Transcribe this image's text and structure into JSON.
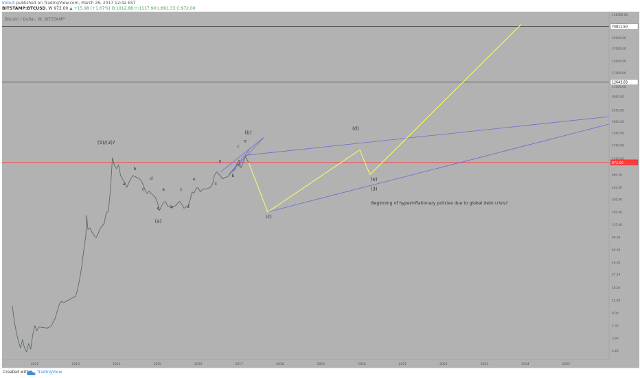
{
  "header": {
    "author": "Imbull",
    "published_text": "published on TradingView.com, March 26, 2017 12:42 EST",
    "symbol": "BITSTAMP:BTCUSD",
    "interval": "W",
    "last": "972.00",
    "change": "▲ +15.98 (+1.67%)",
    "ohlc": "O:1012.88 H:1117.90 L:891.33 C:972.00"
  },
  "footer": {
    "created_with": "Created with",
    "brand": "TradingView"
  },
  "colors": {
    "background": "#b2b2b2",
    "price_line": "#5a6a66",
    "projection": "#ffff66",
    "trendline": "#6a6ad8",
    "current_price": "#ff3b3b",
    "level_line": "#4a4a4a"
  },
  "chart_data": {
    "type": "line",
    "title": "Bitcoin / Dollar, W, BITSTAMP",
    "yscale": "log",
    "ylim": [
      1.8,
      120000
    ],
    "xlim": [
      2011.2,
      2026.05
    ],
    "x_tick_labels": [
      "2012",
      "2013",
      "2014",
      "2015",
      "2016",
      "2017",
      "2018",
      "2019",
      "2020",
      "2021",
      "2022",
      "2023",
      "2024",
      "2025"
    ],
    "y_tick_labels": [
      "110000.00",
      "80000.00",
      "52000.00",
      "37000.00",
      "25000.00",
      "17000.00",
      "11000.00",
      "8000.00",
      "5200.00",
      "3600.00",
      "2500.00",
      "1700.00",
      "1100.00",
      "660.00",
      "440.00",
      "300.00",
      "200.00",
      "135.00",
      "90.00",
      "60.00",
      "40.00",
      "27.50",
      "18.00",
      "12.00",
      "8.00",
      "5.30",
      "3.60",
      "2.40"
    ],
    "series": [
      {
        "points": [
          [
            2011.45,
            10
          ],
          [
            2011.5,
            6
          ],
          [
            2011.55,
            4.3
          ],
          [
            2011.6,
            3.2
          ],
          [
            2011.65,
            2.6
          ],
          [
            2011.7,
            3.4
          ],
          [
            2011.75,
            2.6
          ],
          [
            2011.8,
            2.3
          ],
          [
            2011.85,
            3
          ],
          [
            2011.9,
            2.5
          ],
          [
            2011.95,
            3.9
          ],
          [
            2012.0,
            5.3
          ],
          [
            2012.05,
            4.5
          ],
          [
            2012.1,
            5.1
          ],
          [
            2012.2,
            5
          ],
          [
            2012.3,
            4.9
          ],
          [
            2012.4,
            5.2
          ],
          [
            2012.5,
            6.7
          ],
          [
            2012.6,
            10.5
          ],
          [
            2012.65,
            11.5
          ],
          [
            2012.7,
            11
          ],
          [
            2012.8,
            11.8
          ],
          [
            2012.9,
            12.7
          ],
          [
            2013.0,
            13.5
          ],
          [
            2013.05,
            17
          ],
          [
            2013.1,
            24
          ],
          [
            2013.15,
            35
          ],
          [
            2013.2,
            60
          ],
          [
            2013.25,
            95
          ],
          [
            2013.27,
            180
          ],
          [
            2013.3,
            115
          ],
          [
            2013.35,
            120
          ],
          [
            2013.4,
            105
          ],
          [
            2013.45,
            95
          ],
          [
            2013.5,
            88
          ],
          [
            2013.55,
            100
          ],
          [
            2013.6,
            118
          ],
          [
            2013.65,
            128
          ],
          [
            2013.7,
            140
          ],
          [
            2013.75,
            195
          ],
          [
            2013.8,
            205
          ],
          [
            2013.85,
            400
          ],
          [
            2013.9,
            1130
          ],
          [
            2013.95,
            880
          ],
          [
            2014.0,
            800
          ],
          [
            2014.05,
            900
          ],
          [
            2014.1,
            640
          ],
          [
            2014.15,
            570
          ],
          [
            2014.2,
            520
          ],
          [
            2014.25,
            440
          ],
          [
            2014.3,
            500
          ],
          [
            2014.35,
            580
          ],
          [
            2014.4,
            640
          ],
          [
            2014.45,
            620
          ],
          [
            2014.5,
            600
          ],
          [
            2014.55,
            580
          ],
          [
            2014.6,
            550
          ],
          [
            2014.65,
            480
          ],
          [
            2014.7,
            400
          ],
          [
            2014.75,
            360
          ],
          [
            2014.8,
            390
          ],
          [
            2014.85,
            360
          ],
          [
            2014.9,
            340
          ],
          [
            2014.95,
            320
          ],
          [
            2015.0,
            270
          ],
          [
            2015.05,
            210
          ],
          [
            2015.1,
            240
          ],
          [
            2015.15,
            270
          ],
          [
            2015.2,
            280
          ],
          [
            2015.25,
            240
          ],
          [
            2015.3,
            235
          ],
          [
            2015.35,
            230
          ],
          [
            2015.4,
            240
          ],
          [
            2015.45,
            245
          ],
          [
            2015.5,
            265
          ],
          [
            2015.55,
            280
          ],
          [
            2015.6,
            255
          ],
          [
            2015.65,
            225
          ],
          [
            2015.7,
            235
          ],
          [
            2015.75,
            245
          ],
          [
            2015.8,
            290
          ],
          [
            2015.85,
            380
          ],
          [
            2015.9,
            365
          ],
          [
            2015.95,
            430
          ],
          [
            2016.0,
            430
          ],
          [
            2016.05,
            380
          ],
          [
            2016.1,
            410
          ],
          [
            2016.15,
            420
          ],
          [
            2016.2,
            415
          ],
          [
            2016.25,
            430
          ],
          [
            2016.3,
            440
          ],
          [
            2016.35,
            490
          ],
          [
            2016.4,
            650
          ],
          [
            2016.45,
            720
          ],
          [
            2016.5,
            670
          ],
          [
            2016.55,
            620
          ],
          [
            2016.6,
            575
          ],
          [
            2016.65,
            600
          ],
          [
            2016.7,
            610
          ],
          [
            2016.75,
            640
          ],
          [
            2016.8,
            720
          ],
          [
            2016.85,
            740
          ],
          [
            2016.9,
            780
          ],
          [
            2016.95,
            950
          ],
          [
            2017.0,
            1050
          ],
          [
            2017.02,
            880
          ],
          [
            2017.05,
            820
          ],
          [
            2017.1,
            980
          ],
          [
            2017.15,
            1180
          ],
          [
            2017.2,
            1050
          ],
          [
            2017.23,
            972
          ]
        ]
      }
    ],
    "horizontal_lines": [
      {
        "y": 74811.5,
        "label": "74811.50"
      },
      {
        "y": 12643.83,
        "label": "12643.83"
      },
      {
        "y": 972.0,
        "label": "972.00"
      }
    ],
    "projection_path": [
      [
        2017.23,
        972
      ],
      [
        2017.7,
        200
      ],
      [
        2019.95,
        1450
      ],
      [
        2020.2,
        660
      ],
      [
        2023.9,
        80000
      ]
    ],
    "wave_labels": [
      {
        "text": "(5)/(3)?",
        "x": 2013.75,
        "y": 1750
      },
      {
        "text": "a",
        "x": 2014.18,
        "y": 470
      },
      {
        "text": "b",
        "x": 2014.45,
        "y": 760
      },
      {
        "text": "c",
        "x": 2014.65,
        "y": 400
      },
      {
        "text": "d",
        "x": 2014.85,
        "y": 560
      },
      {
        "text": "e",
        "x": 2015.02,
        "y": 215
      },
      {
        "text": "a",
        "x": 2015.15,
        "y": 395
      },
      {
        "text": "b",
        "x": 2015.35,
        "y": 225
      },
      {
        "text": "c",
        "x": 2015.58,
        "y": 395
      },
      {
        "text": "d",
        "x": 2015.75,
        "y": 228
      },
      {
        "text": "(a)",
        "x": 2015.02,
        "y": 142
      },
      {
        "text": "e",
        "x": 2015.9,
        "y": 545
      },
      {
        "text": "x",
        "x": 2016.43,
        "y": 475
      },
      {
        "text": "a",
        "x": 2016.53,
        "y": 975
      },
      {
        "text": "b",
        "x": 2016.85,
        "y": 610
      },
      {
        "text": "c",
        "x": 2016.98,
        "y": 1550
      },
      {
        "text": "d",
        "x": 2017.0,
        "y": 860
      },
      {
        "text": "e",
        "x": 2017.15,
        "y": 1850
      },
      {
        "text": "(b)",
        "x": 2017.22,
        "y": 2400
      },
      {
        "text": "(c)",
        "x": 2017.72,
        "y": 165
      },
      {
        "text": "(d)",
        "x": 2019.85,
        "y": 2750
      },
      {
        "text": "(e)",
        "x": 2020.3,
        "y": 540
      },
      {
        "text": "(3)",
        "x": 2020.3,
        "y": 400
      }
    ],
    "annotation": {
      "text": "Beginning of hyperinflationary policies due to global debt crisis?",
      "x": 2021.9,
      "y": 255
    }
  }
}
